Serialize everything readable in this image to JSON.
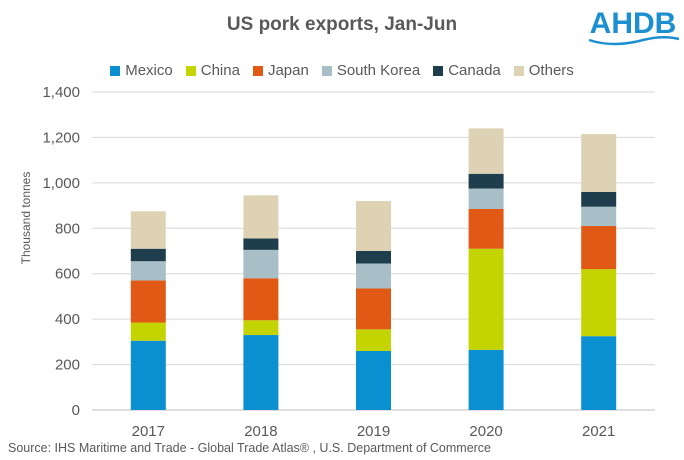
{
  "header": {
    "title": "US pork exports, Jan-Jun",
    "logo_text": "AHDB"
  },
  "source": "Source: IHS Maritime and Trade  - Global Trade  Atlas® , U.S. Department  of Commerce",
  "colors": {
    "Mexico": "#0a8fd1",
    "China": "#c3d400",
    "Japan": "#e05a16",
    "South Korea": "#a9bfc7",
    "Canada": "#1e3e4d",
    "Others": "#ddd3b4",
    "logo": "#1c8fd0"
  },
  "chart_data": {
    "type": "bar",
    "stacked": true,
    "title": "US pork exports, Jan-Jun",
    "xlabel": "",
    "ylabel": "Thousand tonnes",
    "ylim": [
      0,
      1400
    ],
    "yticks": [
      "0",
      "200",
      "400",
      "600",
      "800",
      "1,000",
      "1,200",
      "1,400"
    ],
    "ytick_values": [
      0,
      200,
      400,
      600,
      800,
      1000,
      1200,
      1400
    ],
    "grid": true,
    "legend_position": "top",
    "categories": [
      "2017",
      "2018",
      "2019",
      "2020",
      "2021"
    ],
    "series": [
      {
        "name": "Mexico",
        "values": [
          305,
          330,
          260,
          265,
          325
        ]
      },
      {
        "name": "China",
        "values": [
          80,
          65,
          95,
          445,
          295
        ]
      },
      {
        "name": "Japan",
        "values": [
          185,
          185,
          180,
          175,
          190
        ]
      },
      {
        "name": "South Korea",
        "values": [
          85,
          125,
          110,
          90,
          85
        ]
      },
      {
        "name": "Canada",
        "values": [
          55,
          50,
          55,
          65,
          65
        ]
      },
      {
        "name": "Others",
        "values": [
          165,
          190,
          220,
          200,
          255
        ]
      }
    ]
  }
}
